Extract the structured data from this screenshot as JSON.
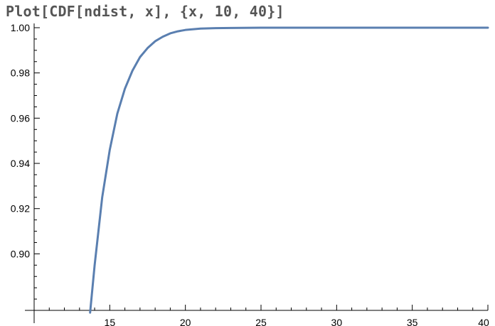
{
  "input": {
    "code": "Plot[CDF[ndist, x], {x, 10, 40}]"
  },
  "colors": {
    "curve": "#5a7fb0",
    "axis": "#000000",
    "code_text": "#555555"
  },
  "chart_data": {
    "type": "line",
    "title": "",
    "xlabel": "",
    "ylabel": "",
    "xlim": [
      10,
      40
    ],
    "ylim": [
      0.875,
      1.0
    ],
    "grid": false,
    "x_ticks": [
      15,
      20,
      25,
      30,
      35,
      40
    ],
    "y_ticks": [
      "1.00",
      "0.98",
      "0.96",
      "0.94",
      "0.92",
      "0.90"
    ],
    "series": [
      {
        "x": [
          13.7,
          14.0,
          14.5,
          15.0,
          15.5,
          16.0,
          16.5,
          17.0,
          17.5,
          18.0,
          18.5,
          19.0,
          19.5,
          20.0,
          21.0,
          22.0,
          23.0,
          25.0,
          30.0,
          35.0,
          40.0
        ],
        "y": [
          0.874,
          0.895,
          0.925,
          0.946,
          0.962,
          0.973,
          0.981,
          0.987,
          0.991,
          0.994,
          0.996,
          0.9975,
          0.9984,
          0.999,
          0.9996,
          0.9998,
          0.9999,
          1.0,
          1.0,
          1.0,
          1.0
        ]
      }
    ]
  }
}
